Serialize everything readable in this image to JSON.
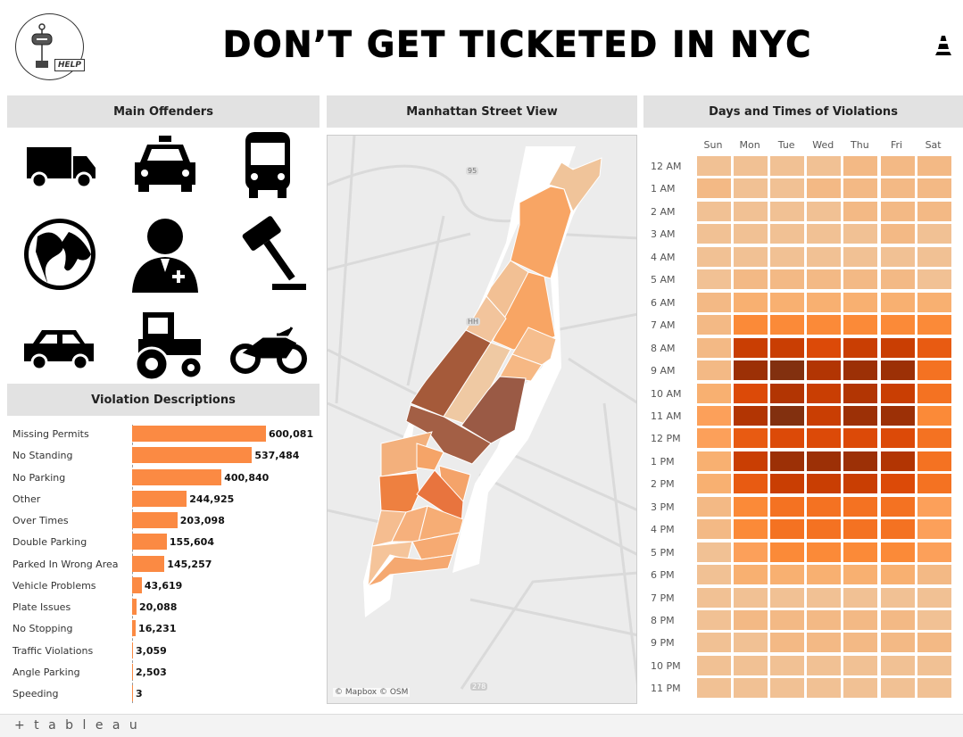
{
  "header": {
    "title": "DON’T GET TICKETED IN NYC",
    "help_label": "HELP",
    "help_icon": "signpost-help-icon",
    "logo_icon": "traffic-cone-icon"
  },
  "panels": {
    "offenders": "Main Offenders",
    "map": "Manhattan Street View",
    "heatmap": "Days and Times of Violations",
    "descriptions": "Violation Descriptions"
  },
  "offender_icons": [
    "truck-icon",
    "taxi-icon",
    "bus-icon",
    "globe-icon",
    "official-person-icon",
    "gavel-icon",
    "car-icon",
    "tractor-icon",
    "motorcycle-icon"
  ],
  "map": {
    "attribution": "© Mapbox © OSM",
    "shields": [
      "95",
      "HH",
      "278"
    ]
  },
  "chart_data": [
    {
      "type": "bar",
      "orientation": "horizontal",
      "title": "Violation Descriptions",
      "bar_color": "#fb8a43",
      "categories": [
        "Missing Permits",
        "No Standing",
        "No Parking",
        "Other",
        "Over Times",
        "Double Parking",
        "Parked In Wrong Area",
        "Vehicle Problems",
        "Plate Issues",
        "No Stopping",
        "Traffic Violations",
        "Angle Parking",
        "Speeding"
      ],
      "values": [
        600081,
        537484,
        400840,
        244925,
        203098,
        155604,
        145257,
        43619,
        20088,
        16231,
        3059,
        2503,
        3
      ],
      "labels": [
        "600,081",
        "537,484",
        "400,840",
        "244,925",
        "203,098",
        "155,604",
        "145,257",
        "43,619",
        "20,088",
        "16,231",
        "3,059",
        "2,503",
        "3"
      ]
    },
    {
      "type": "heatmap",
      "title": "Days and Times of Violations",
      "x": [
        "Sun",
        "Mon",
        "Tue",
        "Wed",
        "Thu",
        "Fri",
        "Sat"
      ],
      "y": [
        "12 AM",
        "1 AM",
        "2 AM",
        "3 AM",
        "4 AM",
        "5 AM",
        "6 AM",
        "7 AM",
        "8 AM",
        "9 AM",
        "10 AM",
        "11 AM",
        "12 PM",
        "1 PM",
        "2 PM",
        "3 PM",
        "4 PM",
        "5 PM",
        "6 PM",
        "7 PM",
        "8 PM",
        "9 PM",
        "10 PM",
        "11 PM"
      ],
      "intensity_scale": [
        0,
        11
      ],
      "colors": [
        "#f1c194",
        "#f3b985",
        "#f8b071",
        "#fca05a",
        "#fb8a38",
        "#f47222",
        "#e85b12",
        "#dc4a08",
        "#c93e03",
        "#b23503",
        "#9c3006",
        "#82300f"
      ],
      "values": [
        [
          0,
          0,
          0,
          0,
          1,
          1,
          1
        ],
        [
          1,
          0,
          0,
          1,
          1,
          1,
          1
        ],
        [
          0,
          0,
          0,
          0,
          1,
          1,
          1
        ],
        [
          0,
          0,
          0,
          0,
          0,
          1,
          0
        ],
        [
          0,
          0,
          0,
          0,
          0,
          0,
          0
        ],
        [
          0,
          1,
          1,
          1,
          1,
          1,
          0
        ],
        [
          1,
          2,
          2,
          2,
          2,
          2,
          2
        ],
        [
          1,
          4,
          4,
          4,
          4,
          4,
          4
        ],
        [
          1,
          8,
          8,
          7,
          8,
          8,
          6
        ],
        [
          1,
          10,
          11,
          9,
          10,
          10,
          5
        ],
        [
          2,
          7,
          9,
          8,
          9,
          8,
          5
        ],
        [
          3,
          9,
          11,
          8,
          10,
          10,
          4
        ],
        [
          3,
          6,
          7,
          7,
          7,
          7,
          5
        ],
        [
          2,
          8,
          10,
          10,
          10,
          9,
          5
        ],
        [
          2,
          6,
          8,
          8,
          8,
          7,
          5
        ],
        [
          1,
          4,
          5,
          5,
          5,
          5,
          3
        ],
        [
          1,
          4,
          5,
          5,
          5,
          5,
          3
        ],
        [
          0,
          3,
          4,
          4,
          4,
          4,
          3
        ],
        [
          0,
          2,
          2,
          2,
          2,
          2,
          1
        ],
        [
          0,
          0,
          0,
          0,
          0,
          0,
          0
        ],
        [
          0,
          1,
          1,
          1,
          1,
          1,
          0
        ],
        [
          0,
          0,
          1,
          1,
          1,
          1,
          1
        ],
        [
          0,
          0,
          0,
          0,
          0,
          0,
          0
        ],
        [
          0,
          0,
          0,
          0,
          0,
          0,
          0
        ]
      ]
    }
  ],
  "footer": {
    "brand": "+ t a b l e a u"
  }
}
